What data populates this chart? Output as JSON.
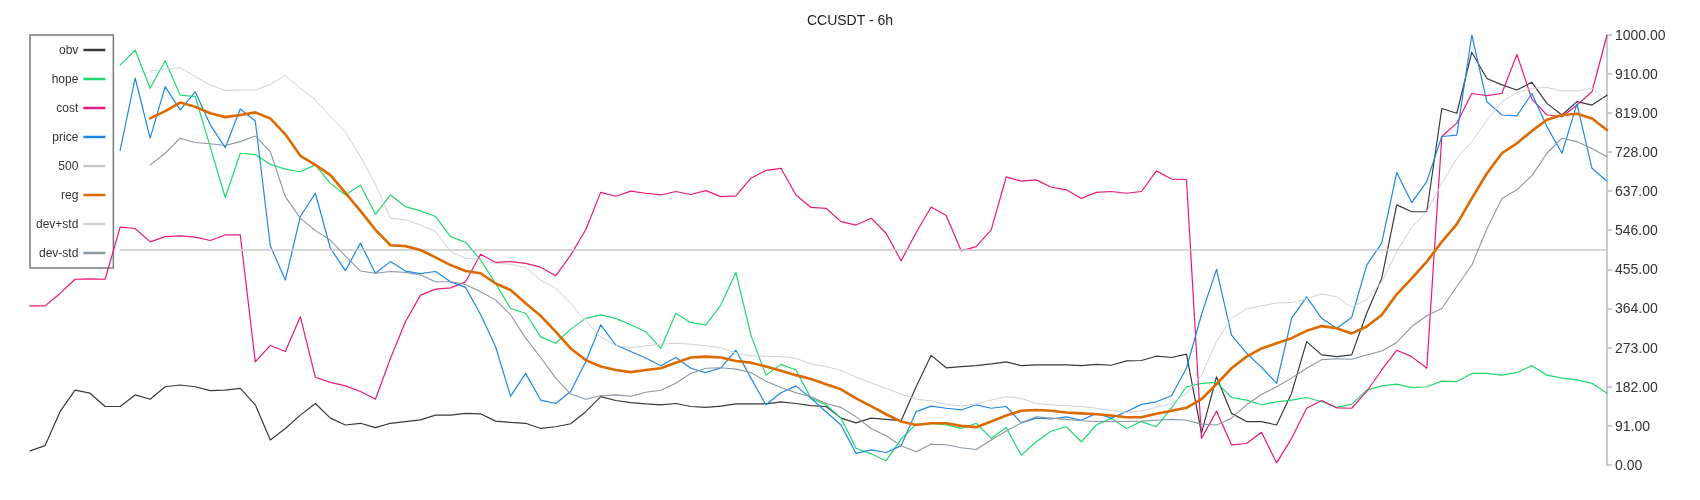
{
  "chart_data": {
    "type": "line",
    "title": "CCUSDT - 6h",
    "categories": [
      null,
      null,
      null,
      null,
      null,
      null,
      null,
      null,
      null,
      null,
      null,
      null,
      null,
      null,
      null,
      null,
      null,
      null,
      null,
      null,
      null,
      null,
      null,
      null,
      null,
      null,
      null,
      null,
      null,
      null,
      null,
      null,
      null,
      null,
      null,
      null,
      null,
      null,
      null,
      null,
      null,
      null,
      null,
      null,
      null,
      null,
      null,
      null,
      null,
      null,
      null,
      null,
      null,
      null,
      null,
      null,
      null,
      null,
      null,
      null,
      null,
      null,
      null,
      null,
      null,
      null,
      null,
      null,
      null,
      null,
      null,
      null,
      null,
      null,
      null,
      null,
      null,
      null,
      null,
      null,
      null,
      null,
      null,
      null,
      null,
      null,
      null,
      null,
      null,
      null,
      null,
      null,
      null,
      null,
      null,
      null,
      null,
      null,
      null,
      null,
      null,
      null,
      null,
      null,
      null,
      null
    ],
    "series": [
      {
        "name": "obv",
        "color": "#3a3a3a",
        "values": [
          33,
          45,
          124,
          174,
          167,
          136,
          136,
          163,
          153,
          182,
          186,
          182,
          173,
          174,
          178,
          140,
          58,
          85,
          116,
          143,
          109,
          93,
          97,
          87,
          97,
          101,
          105,
          116,
          116,
          120,
          119,
          102,
          99,
          97,
          85,
          89,
          96,
          124,
          159,
          150,
          145,
          142,
          140,
          143,
          136,
          134,
          137,
          142,
          142,
          142,
          147,
          143,
          138,
          136,
          109,
          98,
          109,
          106,
          103,
          182,
          255,
          226,
          229,
          231,
          235,
          240,
          231,
          233,
          233,
          233,
          231,
          234,
          232,
          242,
          243,
          253,
          250,
          258,
          74,
          205,
          120,
          101,
          101,
          93,
          167,
          287,
          256,
          252,
          256,
          353,
          434,
          605,
          589,
          589,
          829,
          818,
          960,
          899,
          884,
          872,
          890,
          841,
          814,
          845,
          837,
          860
        ]
      },
      {
        "name": "hope",
        "color": "#1ed96e",
        "values": [
          null,
          null,
          null,
          null,
          null,
          null,
          930,
          965,
          876,
          940,
          860,
          857,
          740,
          622,
          725,
          722,
          699,
          688,
          682,
          698,
          655,
          628,
          651,
          583,
          628,
          601,
          591,
          578,
          531,
          518,
          477,
          422,
          364,
          353,
          298,
          283,
          316,
          341,
          349,
          341,
          326,
          310,
          271,
          353,
          331,
          326,
          372,
          448,
          302,
          209,
          234,
          221,
          155,
          140,
          109,
          39,
          26,
          10,
          60,
          95,
          97,
          93,
          85,
          97,
          62,
          87,
          23,
          54,
          79,
          89,
          54,
          93,
          109,
          85,
          101,
          89,
          132,
          182,
          190,
          192,
          157,
          151,
          140,
          147,
          151,
          157,
          147,
          134,
          141,
          174,
          184,
          188,
          180,
          182,
          195,
          194,
          213,
          213,
          209,
          215,
          231,
          209,
          202,
          198,
          190,
          167
        ]
      },
      {
        "name": "cost",
        "color": "#e6197c",
        "values": [
          370,
          370,
          399,
          432,
          433,
          432,
          553,
          550,
          519,
          531,
          533,
          530,
          522,
          535,
          535,
          240,
          278,
          264,
          345,
          204,
          192,
          184,
          171,
          153,
          248,
          333,
          395,
          409,
          412,
          426,
          490,
          471,
          473,
          469,
          460,
          440,
          488,
          547,
          634,
          625,
          637,
          632,
          628,
          636,
          629,
          638,
          624,
          626,
          667,
          685,
          690,
          628,
          599,
          597,
          566,
          558,
          574,
          539,
          475,
          540,
          600,
          580,
          498,
          508,
          547,
          670,
          660,
          663,
          646,
          640,
          620,
          634,
          636,
          632,
          636,
          684,
          665,
          664,
          62,
          125,
          47,
          50,
          76,
          5,
          62,
          132,
          150,
          133,
          132,
          171,
          221,
          267,
          252,
          225,
          764,
          795,
          864,
          859,
          864,
          955,
          851,
          814,
          810,
          837,
          868,
          1000
        ]
      },
      {
        "name": "price",
        "color": "#1e88e5",
        "values": [
          null,
          null,
          null,
          null,
          null,
          null,
          731,
          900,
          760,
          880,
          826,
          868,
          791,
          738,
          828,
          800,
          510,
          430,
          578,
          632,
          504,
          452,
          516,
          446,
          473,
          451,
          445,
          450,
          426,
          413,
          350,
          275,
          160,
          213,
          151,
          143,
          171,
          240,
          326,
          279,
          264,
          249,
          231,
          250,
          225,
          215,
          226,
          267,
          202,
          140,
          168,
          184,
          155,
          124,
          93,
          27,
          35,
          29,
          45,
          124,
          137,
          132,
          128,
          140,
          132,
          136,
          98,
          109,
          107,
          112,
          104,
          120,
          109,
          124,
          141,
          147,
          161,
          225,
          350,
          455,
          302,
          260,
          227,
          190,
          341,
          391,
          341,
          318,
          343,
          465,
          516,
          680,
          610,
          659,
          764,
          767,
          1000,
          845,
          814,
          812,
          864,
          787,
          725,
          840,
          690,
          660
        ]
      },
      {
        "name": "500",
        "color": "#c8c8c8",
        "values": [
          null,
          null,
          null,
          null,
          null,
          null,
          500,
          500,
          500,
          500,
          500,
          500,
          500,
          500,
          500,
          500,
          500,
          500,
          500,
          500,
          500,
          500,
          500,
          500,
          500,
          500,
          500,
          500,
          500,
          500,
          500,
          500,
          500,
          500,
          500,
          500,
          500,
          500,
          500,
          500,
          500,
          500,
          500,
          500,
          500,
          500,
          500,
          500,
          500,
          500,
          500,
          500,
          500,
          500,
          500,
          500,
          500,
          500,
          500,
          500,
          500,
          500,
          500,
          500,
          500,
          500,
          500,
          500,
          500,
          500,
          500,
          500,
          500,
          500,
          500,
          500,
          500,
          500,
          500,
          500,
          500,
          500,
          500,
          500,
          500,
          500,
          500,
          500,
          500,
          500,
          500,
          500,
          500,
          500,
          500,
          500,
          500,
          500,
          500,
          500,
          500,
          500,
          500,
          500,
          500,
          500
        ]
      },
      {
        "name": "reg",
        "color": "#dc6a00",
        "values": [
          null,
          null,
          null,
          null,
          null,
          null,
          null,
          null,
          806,
          823,
          843,
          833,
          818,
          809,
          814,
          820,
          806,
          769,
          719,
          698,
          674,
          633,
          591,
          547,
          511,
          509,
          500,
          483,
          465,
          451,
          446,
          422,
          407,
          376,
          347,
          310,
          271,
          244,
          229,
          221,
          216,
          221,
          225,
          238,
          250,
          252,
          250,
          242,
          238,
          229,
          219,
          209,
          200,
          188,
          176,
          155,
          137,
          118,
          101,
          93,
          97,
          97,
          91,
          88,
          101,
          115,
          126,
          128,
          126,
          122,
          120,
          118,
          115,
          111,
          111,
          119,
          126,
          133,
          153,
          188,
          225,
          252,
          271,
          283,
          295,
          312,
          323,
          318,
          306,
          322,
          349,
          397,
          434,
          473,
          519,
          560,
          620,
          678,
          725,
          748,
          777,
          803,
          814,
          817,
          806,
          779
        ]
      },
      {
        "name": "dev+std",
        "color": "#cdd2d6",
        "values": [
          null,
          null,
          null,
          null,
          null,
          null,
          null,
          null,
          916,
          921,
          924,
          903,
          884,
          871,
          872,
          872,
          885,
          906,
          876,
          849,
          810,
          774,
          717,
          653,
          574,
          570,
          558,
          543,
          496,
          481,
          478,
          469,
          467,
          459,
          430,
          411,
          376,
          335,
          298,
          278,
          273,
          277,
          281,
          283,
          281,
          277,
          273,
          260,
          254,
          253,
          252,
          248,
          235,
          229,
          220,
          204,
          191,
          178,
          165,
          153,
          149,
          141,
          137,
          142,
          151,
          159,
          155,
          143,
          140,
          138,
          136,
          132,
          127,
          122,
          126,
          134,
          143,
          167,
          209,
          287,
          341,
          363,
          370,
          377,
          378,
          386,
          398,
          391,
          367,
          384,
          426,
          496,
          553,
          589,
          655,
          713,
          752,
          801,
          845,
          866,
          876,
          878,
          870,
          870,
          876,
          845
        ]
      },
      {
        "name": "dev-std",
        "color": "#8a97a3",
        "values": [
          null,
          null,
          null,
          null,
          null,
          null,
          null,
          null,
          698,
          725,
          760,
          750,
          747,
          743,
          752,
          765,
          729,
          624,
          574,
          545,
          523,
          486,
          451,
          446,
          450,
          448,
          442,
          426,
          426,
          420,
          403,
          384,
          349,
          295,
          250,
          202,
          165,
          153,
          161,
          163,
          160,
          169,
          174,
          190,
          213,
          225,
          226,
          223,
          215,
          195,
          180,
          168,
          159,
          143,
          134,
          112,
          85,
          68,
          45,
          31,
          48,
          47,
          40,
          36,
          58,
          79,
          98,
          112,
          109,
          106,
          103,
          101,
          101,
          101,
          102,
          104,
          106,
          104,
          95,
          93,
          109,
          140,
          164,
          182,
          202,
          225,
          245,
          247,
          246,
          256,
          265,
          285,
          322,
          347,
          364,
          415,
          465,
          549,
          620,
          640,
          673,
          725,
          760,
          752,
          736,
          717
        ]
      }
    ],
    "ylim": [
      0,
      1000
    ],
    "yticks": [
      {
        "value": 0,
        "label": "0.00"
      },
      {
        "value": 91,
        "label": "91.00"
      },
      {
        "value": 182,
        "label": "182.00"
      },
      {
        "value": 273,
        "label": "273.00"
      },
      {
        "value": 364,
        "label": "364.00"
      },
      {
        "value": 455,
        "label": "455.00"
      },
      {
        "value": 546,
        "label": "546.00"
      },
      {
        "value": 637,
        "label": "637.00"
      },
      {
        "value": 728,
        "label": "728.00"
      },
      {
        "value": 819,
        "label": "819.00"
      },
      {
        "value": 910,
        "label": "910.00"
      },
      {
        "value": 1000,
        "label": "1000.00"
      }
    ],
    "tick_labels": "y",
    "grid": false,
    "legend": "top left",
    "marker": "none",
    "line_style": "solid"
  }
}
